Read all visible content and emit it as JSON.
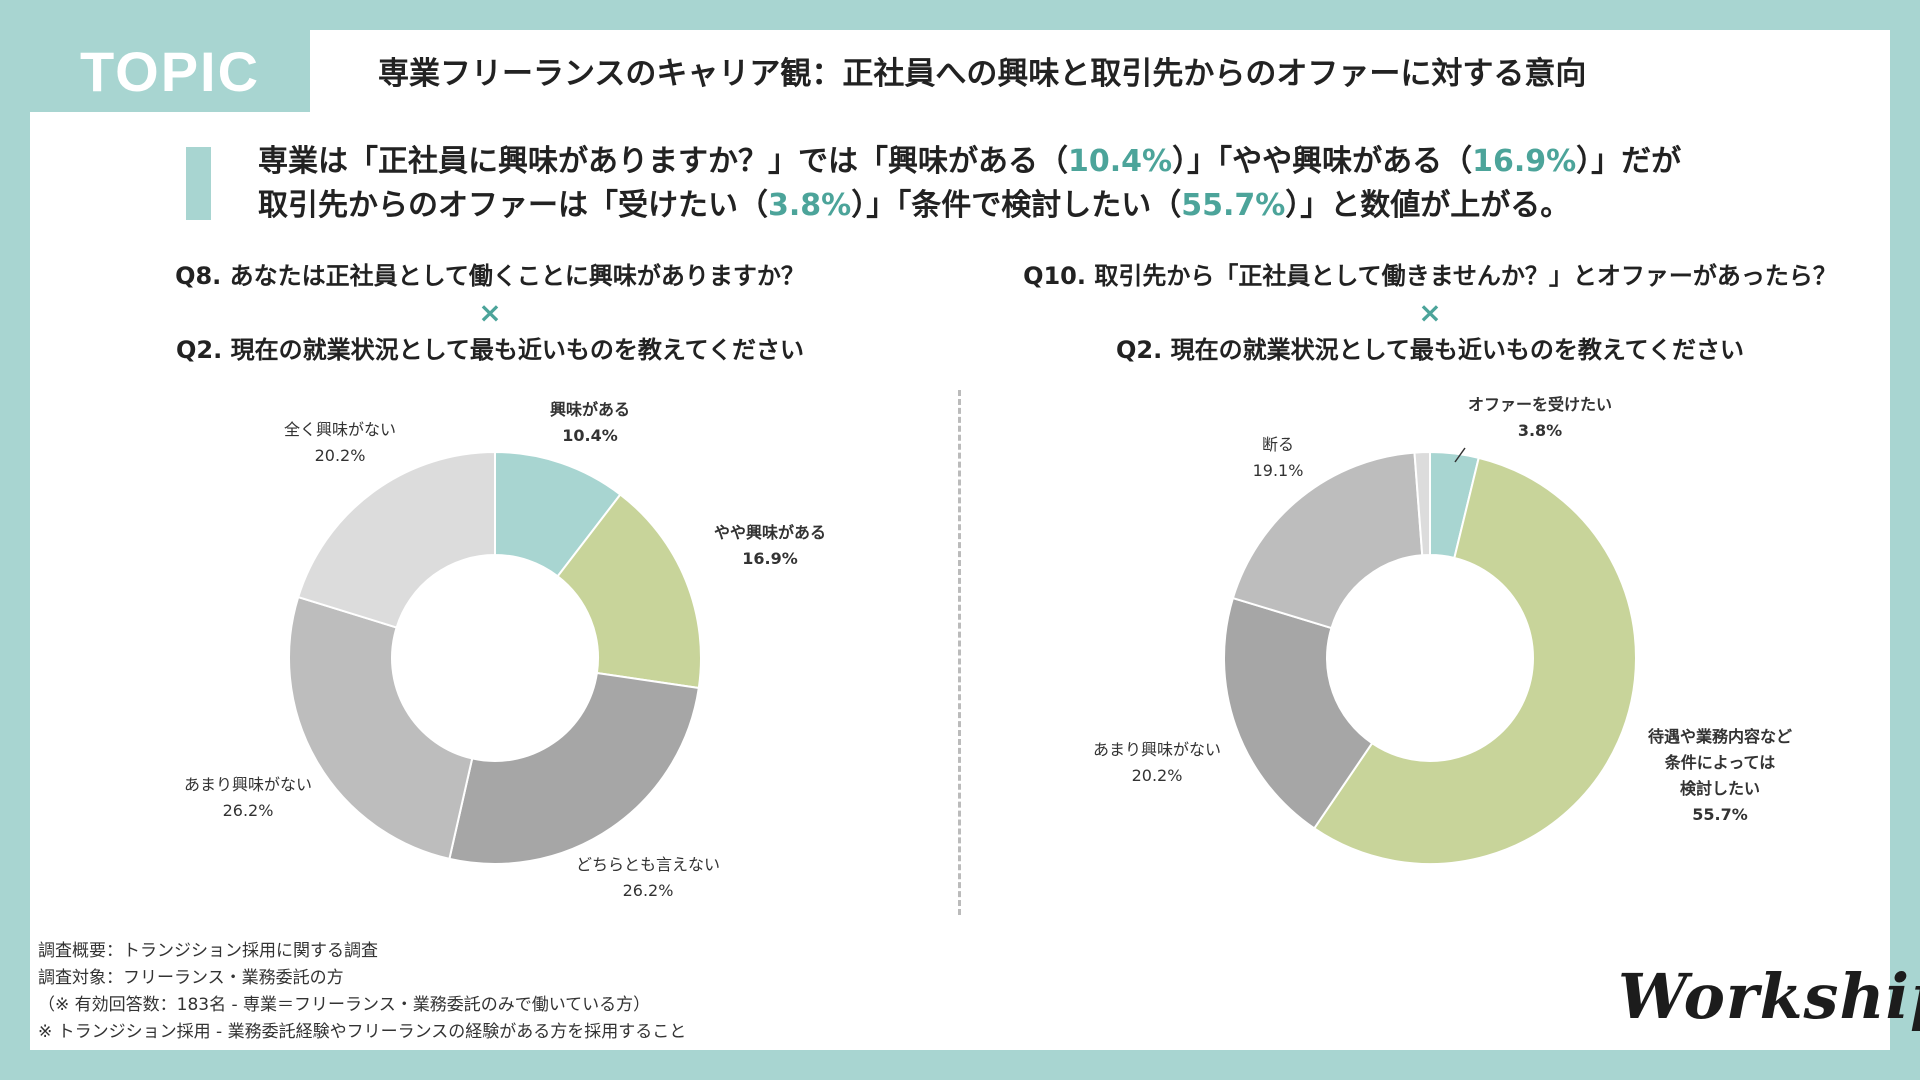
{
  "header": {
    "tag": "TOPIC",
    "title": "専業フリーランスのキャリア観：正社員への興味と取引先からのオファーに対する意向"
  },
  "summary": {
    "line1_a": "専業は「正社員に興味がありますか？」では「興味がある（",
    "line1_v1": "10.4%",
    "line1_b": "）」「やや興味がある（",
    "line1_v2": "16.9%",
    "line1_c": "）」だが",
    "line2_a": "取引先からのオファーは「受けたい（",
    "line2_v1": "3.8%",
    "line2_b": "）」「条件で検討したい（",
    "line2_v2": "55.7%",
    "line2_c": "）」と数値が上がる。"
  },
  "left_question": {
    "q_main": "Q8. あなたは正社員として働くことに興味がありますか？",
    "cross": "×",
    "q_sub": "Q2. 現在の就業状況として最も近いものを教えてください"
  },
  "right_question": {
    "q_main": "Q10. 取引先から「正社員として働きませんか？」とオファーがあったら？",
    "cross": "×",
    "q_sub": "Q2. 現在の就業状況として最も近いものを教えてください"
  },
  "chart_data": [
    {
      "type": "pie",
      "donut": true,
      "title": "Q8. あなたは正社員として働くことに興味がありますか？",
      "series": [
        {
          "name": "興味がある",
          "value": 10.4,
          "label": "10.4%",
          "color": "#a8d5d1",
          "bold": true
        },
        {
          "name": "やや興味がある",
          "value": 16.9,
          "label": "16.9%",
          "color": "#c8d49a",
          "bold": true
        },
        {
          "name": "どちらとも言えない",
          "value": 26.2,
          "label": "26.2%",
          "color": "#a6a6a6",
          "bold": false
        },
        {
          "name": "あまり興味がない",
          "value": 26.2,
          "label": "26.2%",
          "color": "#bdbdbd",
          "bold": false
        },
        {
          "name": "全く興味がない",
          "value": 20.2,
          "label": "20.2%",
          "color": "#dcdcdc",
          "bold": false
        }
      ]
    },
    {
      "type": "pie",
      "donut": true,
      "title": "Q10. 取引先から「正社員として働きませんか？」とオファーがあったら？",
      "series": [
        {
          "name": "オファーを受けたい",
          "value": 3.8,
          "label": "3.8%",
          "color": "#a8d5d1",
          "bold": true
        },
        {
          "name": "待遇や業務内容など\n条件によっては\n検討したい",
          "value": 55.7,
          "label": "55.7%",
          "color": "#c8d49a",
          "bold": true
        },
        {
          "name": "あまり興味がない",
          "value": 20.2,
          "label": "20.2%",
          "color": "#a6a6a6",
          "bold": false
        },
        {
          "name": "断る",
          "value": 19.1,
          "label": "19.1%",
          "color": "#bdbdbd",
          "bold": false
        },
        {
          "name": "",
          "value": 1.2,
          "label": "",
          "color": "#dcdcdc",
          "bold": false
        }
      ]
    }
  ],
  "footer": {
    "line1": "調査概要：トランジション採用に関する調査",
    "line2": "調査対象：フリーランス・業務委託の方",
    "line3": "（※ 有効回答数：183名 - 専業＝フリーランス・業務委託のみで働いている方）",
    "line4": "※ トランジション採用 - 業務委託経験やフリーランスの経験がある方を採用すること"
  },
  "brand": {
    "logo": "Workship"
  }
}
